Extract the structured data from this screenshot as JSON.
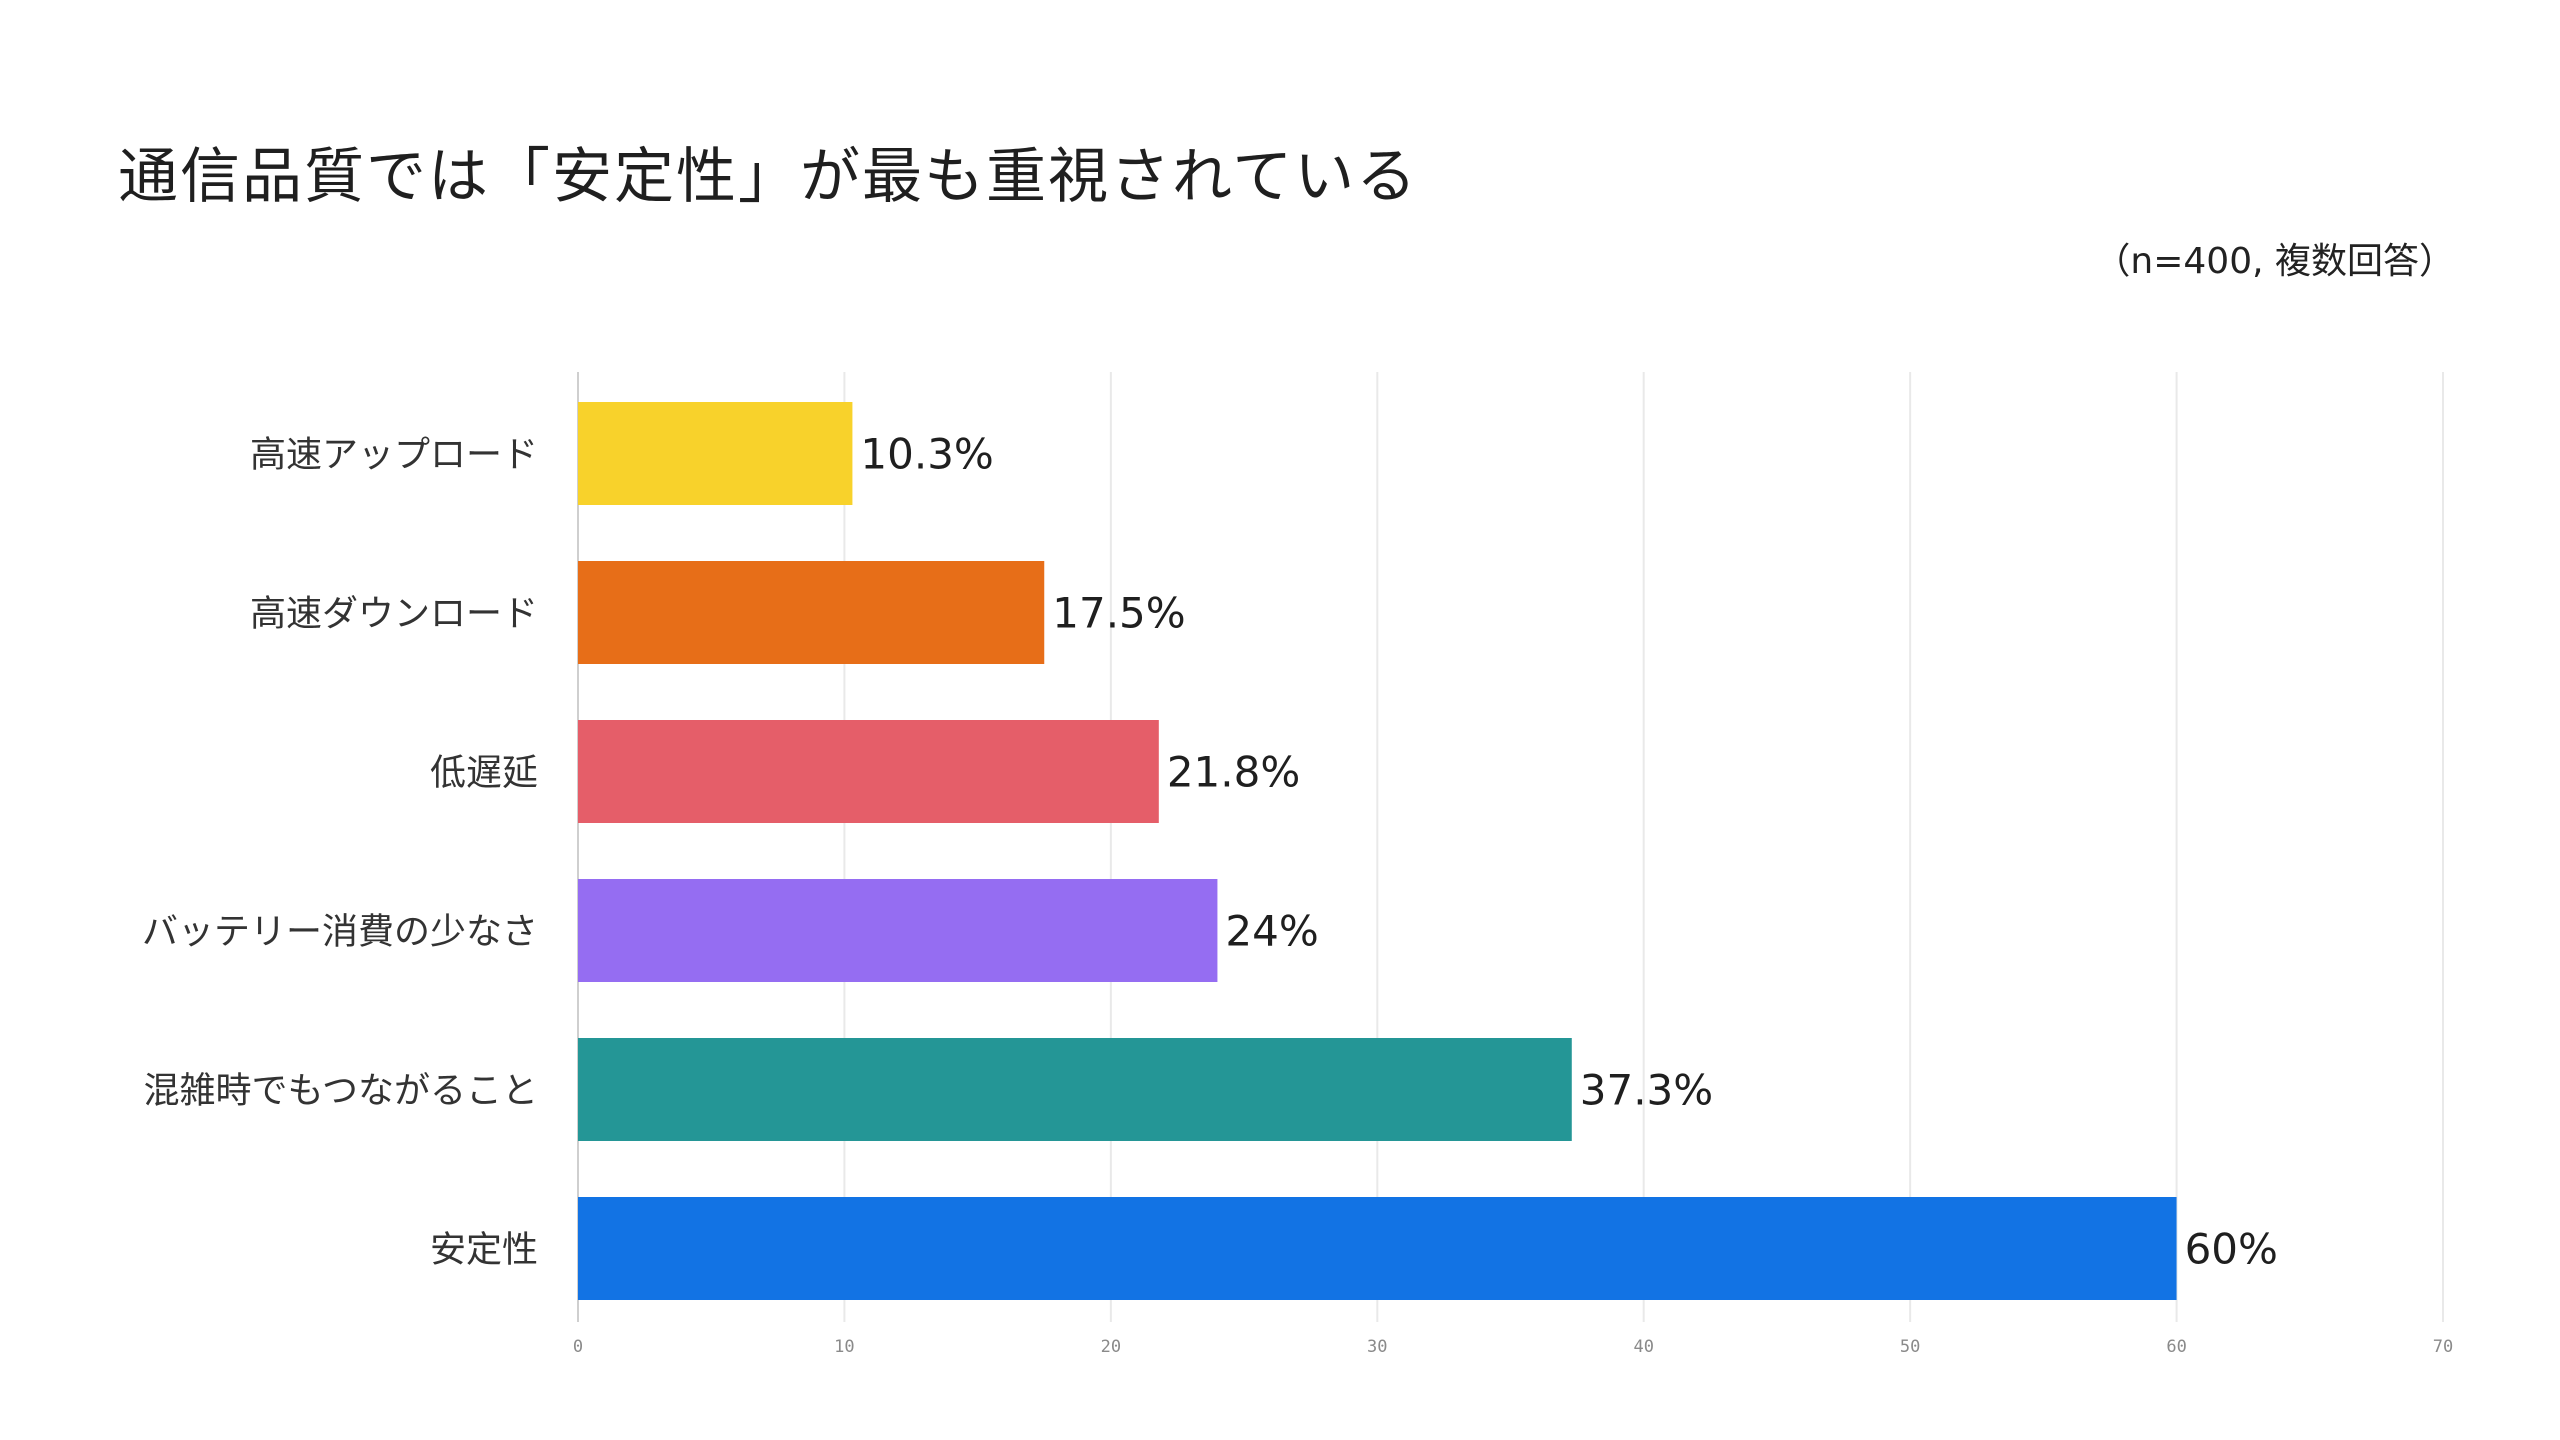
{
  "header": {
    "title": "通信品質では「安定性」が最も重視されている",
    "note": "（n=400, 複数回答）"
  },
  "chart_data": {
    "type": "bar",
    "orientation": "horizontal",
    "title": "通信品質では「安定性」が最も重視されている",
    "subtitle": "（n=400, 複数回答）",
    "categories": [
      "高速アップロード",
      "高速ダウンロード",
      "低遅延",
      "バッテリー消費の少なさ",
      "混雑時でもつながること",
      "安定性"
    ],
    "values": [
      10.3,
      17.5,
      21.8,
      24,
      37.3,
      60
    ],
    "value_labels": [
      "10.3%",
      "17.5%",
      "21.8%",
      "24%",
      "37.3%",
      "60%"
    ],
    "colors": [
      "#F8D22B",
      "#E76E18",
      "#E55E69",
      "#956DF2",
      "#249696",
      "#1273E4"
    ],
    "xlim": [
      0,
      70
    ],
    "xticks": [
      "0",
      "10",
      "20",
      "30",
      "40",
      "50",
      "60",
      "70"
    ],
    "grid": true,
    "xlabel": "",
    "ylabel": ""
  }
}
